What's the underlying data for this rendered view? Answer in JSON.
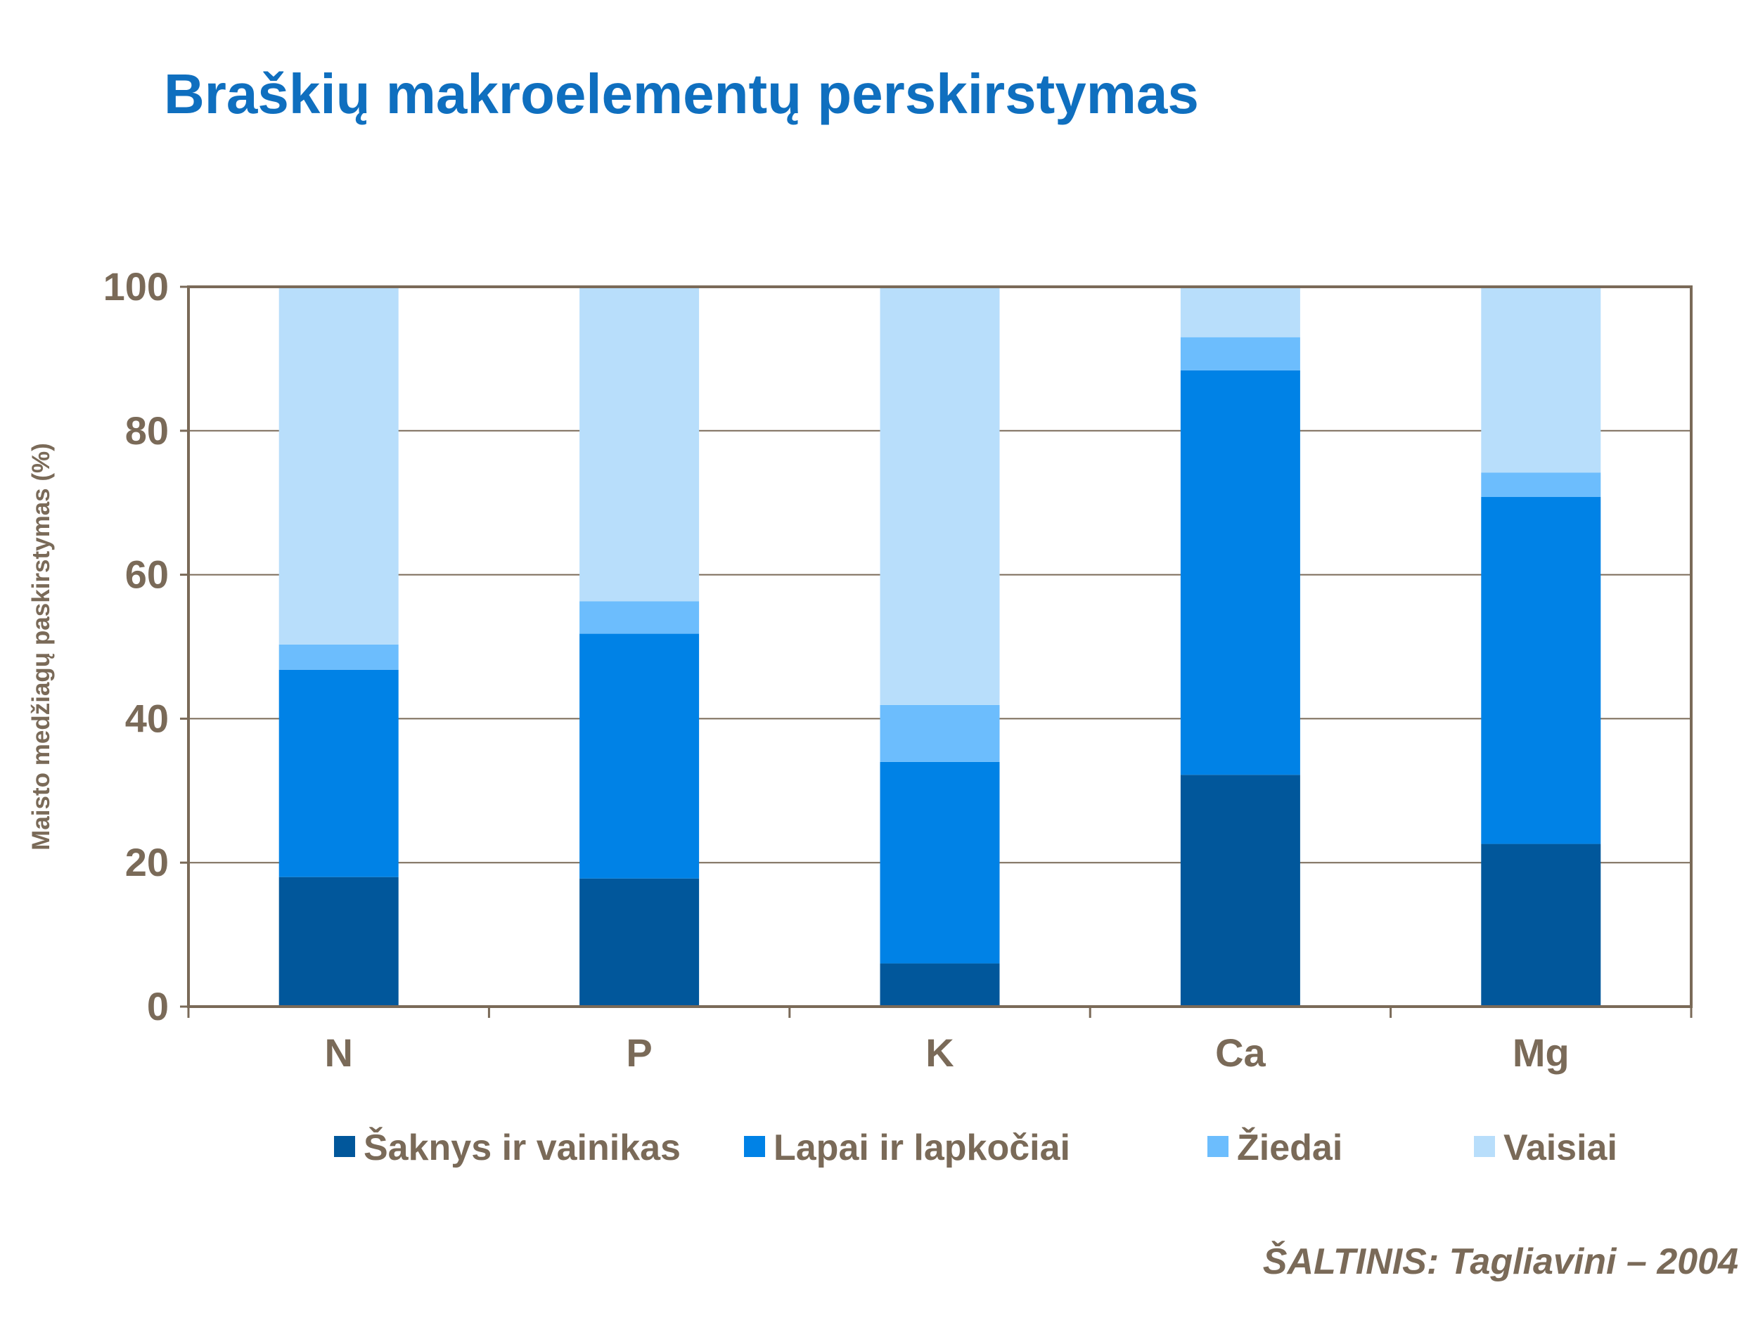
{
  "title": "Braškių makroelementų perskirstymas",
  "source": "ŠALTINIS: Tagliavini – 2004",
  "chart_data": {
    "type": "bar",
    "stacked": true,
    "categories": [
      "N",
      "P",
      "K",
      "Ca",
      "Mg"
    ],
    "ylabel": "Maisto medžiagų paskirstymas (%)",
    "xlabel": "",
    "ylim": [
      0,
      100
    ],
    "yticks": [
      0,
      20,
      40,
      60,
      80,
      100
    ],
    "grid": true,
    "legend": "bottom",
    "series": [
      {
        "name": "Šaknys ir vainikas",
        "color": "#01579b",
        "values": [
          18,
          17.8,
          6,
          32.2,
          22.6
        ]
      },
      {
        "name": "Lapai ir lapkočiai",
        "color": "#0082e6",
        "values": [
          28.8,
          34,
          28,
          56.2,
          48.2
        ]
      },
      {
        "name": "Žiedai",
        "color": "#6cbdfd",
        "values": [
          3.5,
          4.5,
          7.9,
          4.6,
          3.4
        ]
      },
      {
        "name": "Vaisiai",
        "color": "#b8defb",
        "values": [
          49.7,
          43.7,
          58.1,
          7,
          25.8
        ]
      }
    ],
    "axis_color": "#7a6a58",
    "grid_color": "#7a6a58"
  }
}
